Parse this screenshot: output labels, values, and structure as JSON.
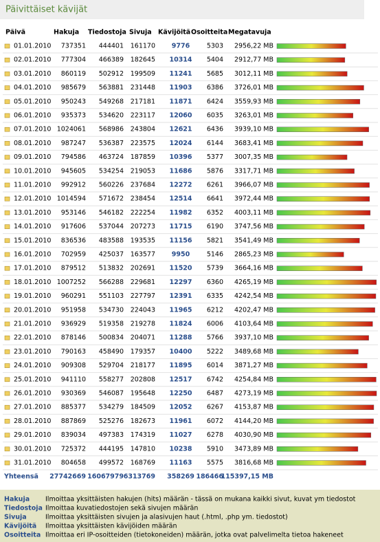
{
  "title": "Päivittäiset kävijät",
  "table": {
    "headers": [
      "Päivä",
      "Hakuja",
      "Tiedostoja",
      "Sivuja",
      "Kävijöitä",
      "Osoitteita",
      "Megatavuja"
    ],
    "rows": [
      {
        "date": "01.01.2010",
        "hakuja": 737351,
        "tiedostoja": 444401,
        "sivuja": 161170,
        "kavijoita": 9776,
        "osoitteita": 5303,
        "mb": 2956.22,
        "mb_label": "2956,22 MB"
      },
      {
        "date": "02.01.2010",
        "hakuja": 777304,
        "tiedostoja": 466389,
        "sivuja": 182645,
        "kavijoita": 10314,
        "osoitteita": 5404,
        "mb": 2912.77,
        "mb_label": "2912,77 MB"
      },
      {
        "date": "03.01.2010",
        "hakuja": 860119,
        "tiedostoja": 502912,
        "sivuja": 199509,
        "kavijoita": 11241,
        "osoitteita": 5685,
        "mb": 3012.11,
        "mb_label": "3012,11 MB"
      },
      {
        "date": "04.01.2010",
        "hakuja": 985679,
        "tiedostoja": 563881,
        "sivuja": 231448,
        "kavijoita": 11903,
        "osoitteita": 6386,
        "mb": 3726.01,
        "mb_label": "3726,01 MB"
      },
      {
        "date": "05.01.2010",
        "hakuja": 950243,
        "tiedostoja": 549268,
        "sivuja": 217181,
        "kavijoita": 11871,
        "osoitteita": 6424,
        "mb": 3559.93,
        "mb_label": "3559,93 MB"
      },
      {
        "date": "06.01.2010",
        "hakuja": 935373,
        "tiedostoja": 534620,
        "sivuja": 223117,
        "kavijoita": 12060,
        "osoitteita": 6035,
        "mb": 3263.01,
        "mb_label": "3263,01 MB"
      },
      {
        "date": "07.01.2010",
        "hakuja": 1024061,
        "tiedostoja": 568986,
        "sivuja": 243804,
        "kavijoita": 12621,
        "osoitteita": 6436,
        "mb": 3939.1,
        "mb_label": "3939,10 MB"
      },
      {
        "date": "08.01.2010",
        "hakuja": 987247,
        "tiedostoja": 536387,
        "sivuja": 223575,
        "kavijoita": 12024,
        "osoitteita": 6144,
        "mb": 3683.41,
        "mb_label": "3683,41 MB"
      },
      {
        "date": "09.01.2010",
        "hakuja": 794586,
        "tiedostoja": 463724,
        "sivuja": 187859,
        "kavijoita": 10396,
        "osoitteita": 5377,
        "mb": 3007.35,
        "mb_label": "3007,35 MB"
      },
      {
        "date": "10.01.2010",
        "hakuja": 945605,
        "tiedostoja": 534254,
        "sivuja": 219053,
        "kavijoita": 11686,
        "osoitteita": 5876,
        "mb": 3317.71,
        "mb_label": "3317,71 MB"
      },
      {
        "date": "11.01.2010",
        "hakuja": 992912,
        "tiedostoja": 560226,
        "sivuja": 237684,
        "kavijoita": 12272,
        "osoitteita": 6261,
        "mb": 3966.07,
        "mb_label": "3966,07 MB"
      },
      {
        "date": "12.01.2010",
        "hakuja": 1014594,
        "tiedostoja": 571672,
        "sivuja": 238454,
        "kavijoita": 12514,
        "osoitteita": 6641,
        "mb": 3972.44,
        "mb_label": "3972,44 MB"
      },
      {
        "date": "13.01.2010",
        "hakuja": 953146,
        "tiedostoja": 546182,
        "sivuja": 222254,
        "kavijoita": 11982,
        "osoitteita": 6352,
        "mb": 4003.11,
        "mb_label": "4003,11 MB"
      },
      {
        "date": "14.01.2010",
        "hakuja": 917606,
        "tiedostoja": 537044,
        "sivuja": 207273,
        "kavijoita": 11715,
        "osoitteita": 6190,
        "mb": 3747.56,
        "mb_label": "3747,56 MB"
      },
      {
        "date": "15.01.2010",
        "hakuja": 836536,
        "tiedostoja": 483588,
        "sivuja": 193535,
        "kavijoita": 11156,
        "osoitteita": 5821,
        "mb": 3541.49,
        "mb_label": "3541,49 MB"
      },
      {
        "date": "16.01.2010",
        "hakuja": 702959,
        "tiedostoja": 425037,
        "sivuja": 163577,
        "kavijoita": 9950,
        "osoitteita": 5146,
        "mb": 2865.23,
        "mb_label": "2865,23 MB"
      },
      {
        "date": "17.01.2010",
        "hakuja": 879512,
        "tiedostoja": 513832,
        "sivuja": 202691,
        "kavijoita": 11520,
        "osoitteita": 5739,
        "mb": 3664.16,
        "mb_label": "3664,16 MB"
      },
      {
        "date": "18.01.2010",
        "hakuja": 1007252,
        "tiedostoja": 566288,
        "sivuja": 229681,
        "kavijoita": 12297,
        "osoitteita": 6360,
        "mb": 4265.19,
        "mb_label": "4265,19 MB"
      },
      {
        "date": "19.01.2010",
        "hakuja": 960291,
        "tiedostoja": 551103,
        "sivuja": 227797,
        "kavijoita": 12391,
        "osoitteita": 6335,
        "mb": 4242.54,
        "mb_label": "4242,54 MB"
      },
      {
        "date": "20.01.2010",
        "hakuja": 951958,
        "tiedostoja": 534730,
        "sivuja": 224043,
        "kavijoita": 11965,
        "osoitteita": 6212,
        "mb": 4202.47,
        "mb_label": "4202,47 MB"
      },
      {
        "date": "21.01.2010",
        "hakuja": 936929,
        "tiedostoja": 519358,
        "sivuja": 219278,
        "kavijoita": 11824,
        "osoitteita": 6006,
        "mb": 4103.64,
        "mb_label": "4103,64 MB"
      },
      {
        "date": "22.01.2010",
        "hakuja": 878146,
        "tiedostoja": 500834,
        "sivuja": 204071,
        "kavijoita": 11288,
        "osoitteita": 5766,
        "mb": 3937.1,
        "mb_label": "3937,10 MB"
      },
      {
        "date": "23.01.2010",
        "hakuja": 790163,
        "tiedostoja": 458490,
        "sivuja": 179357,
        "kavijoita": 10400,
        "osoitteita": 5222,
        "mb": 3489.68,
        "mb_label": "3489,68 MB"
      },
      {
        "date": "24.01.2010",
        "hakuja": 909308,
        "tiedostoja": 529704,
        "sivuja": 218177,
        "kavijoita": 11895,
        "osoitteita": 6014,
        "mb": 3871.27,
        "mb_label": "3871,27 MB"
      },
      {
        "date": "25.01.2010",
        "hakuja": 941110,
        "tiedostoja": 558277,
        "sivuja": 202808,
        "kavijoita": 12517,
        "osoitteita": 6742,
        "mb": 4254.84,
        "mb_label": "4254,84 MB"
      },
      {
        "date": "26.01.2010",
        "hakuja": 930369,
        "tiedostoja": 546087,
        "sivuja": 195648,
        "kavijoita": 12250,
        "osoitteita": 6487,
        "mb": 4273.19,
        "mb_label": "4273,19 MB"
      },
      {
        "date": "27.01.2010",
        "hakuja": 885377,
        "tiedostoja": 534279,
        "sivuja": 184509,
        "kavijoita": 12052,
        "osoitteita": 6267,
        "mb": 4153.87,
        "mb_label": "4153,87 MB"
      },
      {
        "date": "28.01.2010",
        "hakuja": 887869,
        "tiedostoja": 525276,
        "sivuja": 182673,
        "kavijoita": 11961,
        "osoitteita": 6072,
        "mb": 4144.2,
        "mb_label": "4144,20 MB"
      },
      {
        "date": "29.01.2010",
        "hakuja": 839034,
        "tiedostoja": 497383,
        "sivuja": 174319,
        "kavijoita": 11027,
        "osoitteita": 6278,
        "mb": 4030.9,
        "mb_label": "4030,90 MB"
      },
      {
        "date": "30.01.2010",
        "hakuja": 725372,
        "tiedostoja": 444195,
        "sivuja": 147810,
        "kavijoita": 10238,
        "osoitteita": 5910,
        "mb": 3473.89,
        "mb_label": "3473,89 MB"
      },
      {
        "date": "31.01.2010",
        "hakuja": 804658,
        "tiedostoja": 499572,
        "sivuja": 168769,
        "kavijoita": 11163,
        "osoitteita": 5575,
        "mb": 3816.68,
        "mb_label": "3816,68 MB"
      }
    ],
    "totals": {
      "label": "Yhteensä",
      "hakuja": 27742669,
      "tiedostoja": 16067979,
      "sivuja": 6313769,
      "kavijoita": 358269,
      "osoitteita": 186466,
      "mb_label": "115397,15 MB"
    }
  },
  "legend": [
    {
      "key": "Hakuja",
      "text": "Ilmoittaa yksittäisten hakujen (hits) määrän - tässä on mukana kaikki sivut, kuvat ym tiedostot"
    },
    {
      "key": "Tiedostoja",
      "text": "Ilmoittaa kuvatiedostojen sekä sivujen määrän"
    },
    {
      "key": "Sivuja",
      "text": "Ilmoittaa yksittäisten sivujen ja alasivujen haut (.html, .php ym. tiedostot)"
    },
    {
      "key": "Kävijöitä",
      "text": "Ilmoittaa yksittäisten kävijöiden määrän"
    },
    {
      "key": "Osoitteita",
      "text": "Ilmoittaa eri IP-osoitteiden (tietokoneiden) määrän, jotka ovat palvelimelta tietoa hakeneet"
    }
  ]
}
